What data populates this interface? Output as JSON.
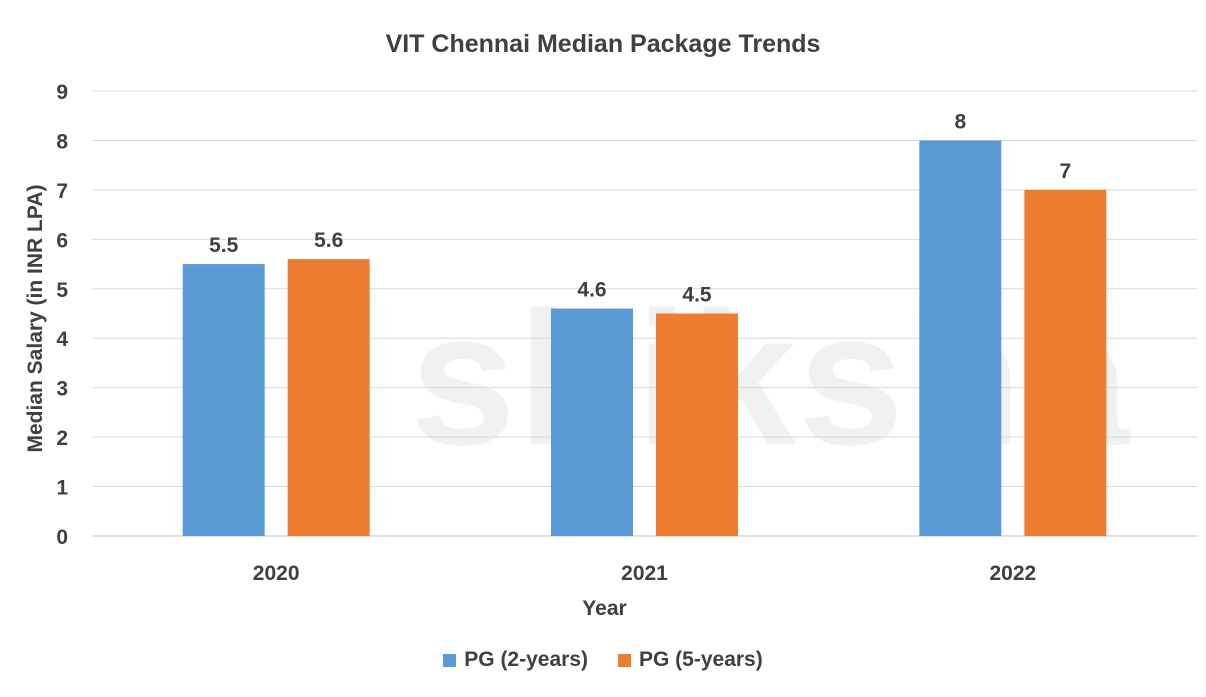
{
  "chart_data": {
    "type": "bar",
    "title": "VIT Chennai Median Package Trends",
    "xlabel": "Year",
    "ylabel": "Median Salary (in INR LPA)",
    "categories": [
      "2020",
      "2021",
      "2022"
    ],
    "series": [
      {
        "name": "PG (2-years)",
        "values": [
          5.5,
          4.6,
          8
        ],
        "color": "#5B9BD5"
      },
      {
        "name": "PG (5-years)",
        "values": [
          5.6,
          4.5,
          7
        ],
        "color": "#ED7D31"
      }
    ],
    "ylim": [
      0,
      9
    ],
    "yticks": [
      0,
      1,
      2,
      3,
      4,
      5,
      6,
      7,
      8,
      9
    ],
    "grid": true,
    "legend": "bottom",
    "data_labels": true
  },
  "watermark": "shiksha"
}
